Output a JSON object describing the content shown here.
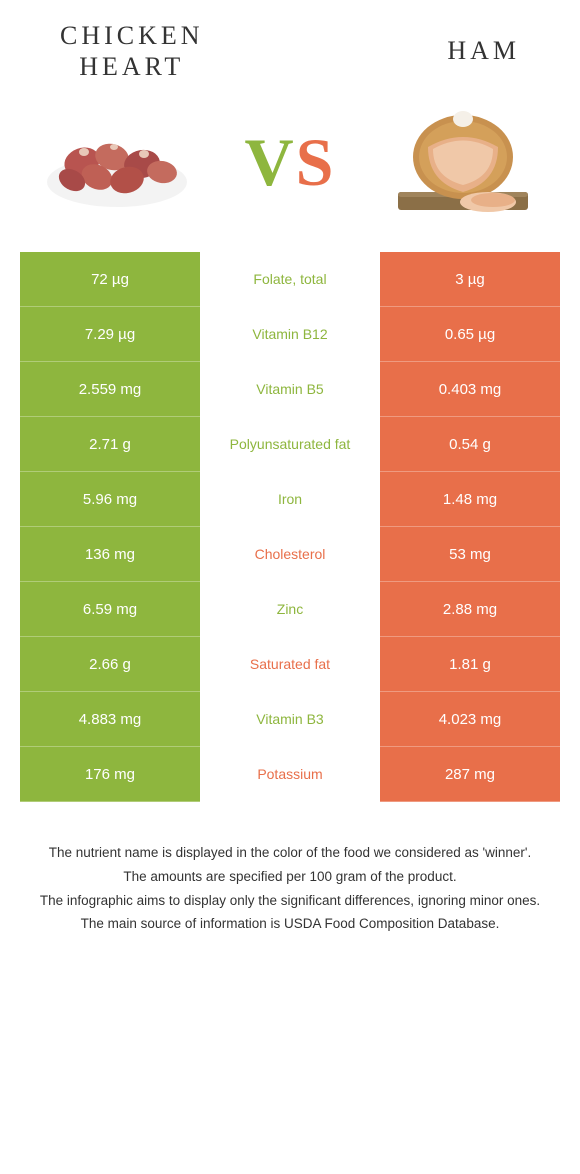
{
  "colors": {
    "green": "#8eb63e",
    "orange": "#e86f4a",
    "vs_green": "#8eb63e",
    "vs_orange": "#e86f4a"
  },
  "header": {
    "left": "CHICKEN\nHEART",
    "right": "HAM"
  },
  "vs": {
    "v": "V",
    "s": "S"
  },
  "rows": [
    {
      "left": "72 µg",
      "mid": "Folate, total",
      "right": "3 µg",
      "winner": "left"
    },
    {
      "left": "7.29 µg",
      "mid": "Vitamin B12",
      "right": "0.65 µg",
      "winner": "left"
    },
    {
      "left": "2.559 mg",
      "mid": "Vitamin B5",
      "right": "0.403 mg",
      "winner": "left"
    },
    {
      "left": "2.71 g",
      "mid": "Polyunsaturated fat",
      "right": "0.54 g",
      "winner": "left"
    },
    {
      "left": "5.96 mg",
      "mid": "Iron",
      "right": "1.48 mg",
      "winner": "left"
    },
    {
      "left": "136 mg",
      "mid": "Cholesterol",
      "right": "53 mg",
      "winner": "right"
    },
    {
      "left": "6.59 mg",
      "mid": "Zinc",
      "right": "2.88 mg",
      "winner": "left"
    },
    {
      "left": "2.66 g",
      "mid": "Saturated fat",
      "right": "1.81 g",
      "winner": "right"
    },
    {
      "left": "4.883 mg",
      "mid": "Vitamin B3",
      "right": "4.023 mg",
      "winner": "left"
    },
    {
      "left": "176 mg",
      "mid": "Potassium",
      "right": "287 mg",
      "winner": "right"
    }
  ],
  "footer": {
    "l1": "The nutrient name is displayed in the color of the food we considered as 'winner'.",
    "l2": "The amounts are specified per 100 gram of the product.",
    "l3": "The infographic aims to display only the significant differences, ignoring minor ones.",
    "l4": "The main source of information is USDA Food Composition Database."
  }
}
